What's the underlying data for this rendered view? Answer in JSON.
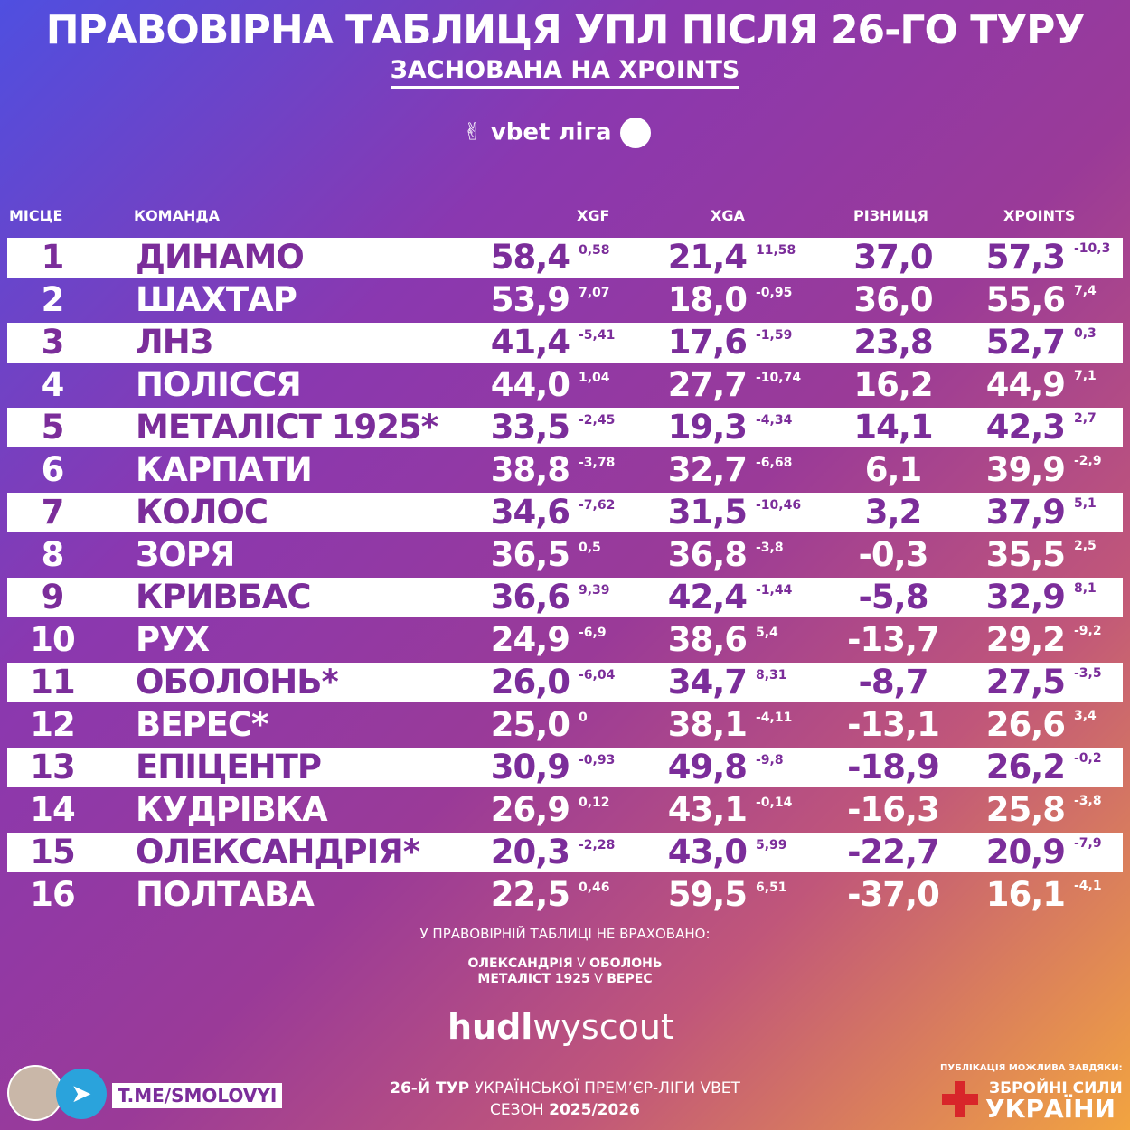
{
  "header": {
    "title": "ПРАВОВІРНА ТАБЛИЦЯ УПЛ ПІСЛЯ 26-ГО ТУРУ",
    "subtitle": "ЗАСНОВАНА НА XPOINTS",
    "logo": "vbet ліга"
  },
  "table": {
    "columns": [
      "МІСЦЕ",
      "КОМАНДА",
      "XGF",
      "XGA",
      "РІЗНИЦЯ",
      "XPOINTS"
    ],
    "rows": [
      [
        "1",
        "ДИНАМО",
        "58,4",
        "0,58",
        "21,4",
        "11,58",
        "37,0",
        "57,3",
        "-10,3"
      ],
      [
        "2",
        "ШАХТАР",
        "53,9",
        "7,07",
        "18,0",
        "-0,95",
        "36,0",
        "55,6",
        "7,4"
      ],
      [
        "3",
        "ЛНЗ",
        "41,4",
        "-5,41",
        "17,6",
        "-1,59",
        "23,8",
        "52,7",
        "0,3"
      ],
      [
        "4",
        "ПОЛІССЯ",
        "44,0",
        "1,04",
        "27,7",
        "-10,74",
        "16,2",
        "44,9",
        "7,1"
      ],
      [
        "5",
        "МЕТАЛІСТ 1925*",
        "33,5",
        "-2,45",
        "19,3",
        "-4,34",
        "14,1",
        "42,3",
        "2,7"
      ],
      [
        "6",
        "КАРПАТИ",
        "38,8",
        "-3,78",
        "32,7",
        "-6,68",
        "6,1",
        "39,9",
        "-2,9"
      ],
      [
        "7",
        "КОЛОС",
        "34,6",
        "-7,62",
        "31,5",
        "-10,46",
        "3,2",
        "37,9",
        "5,1"
      ],
      [
        "8",
        "ЗОРЯ",
        "36,5",
        "0,5",
        "36,8",
        "-3,8",
        "-0,3",
        "35,5",
        "2,5"
      ],
      [
        "9",
        "КРИВБАС",
        "36,6",
        "9,39",
        "42,4",
        "-1,44",
        "-5,8",
        "32,9",
        "8,1"
      ],
      [
        "10",
        "РУХ",
        "24,9",
        "-6,9",
        "38,6",
        "5,4",
        "-13,7",
        "29,2",
        "-9,2"
      ],
      [
        "11",
        "ОБОЛОНЬ*",
        "26,0",
        "-6,04",
        "34,7",
        "8,31",
        "-8,7",
        "27,5",
        "-3,5"
      ],
      [
        "12",
        "ВЕРЕС*",
        "25,0",
        "0",
        "38,1",
        "-4,11",
        "-13,1",
        "26,6",
        "3,4"
      ],
      [
        "13",
        "ЕПІЦЕНТР",
        "30,9",
        "-0,93",
        "49,8",
        "-9,8",
        "-18,9",
        "26,2",
        "-0,2"
      ],
      [
        "14",
        "КУДРІВКА",
        "26,9",
        "0,12",
        "43,1",
        "-0,14",
        "-16,3",
        "25,8",
        "-3,8"
      ],
      [
        "15",
        "ОЛЕКСАНДРІЯ*",
        "20,3",
        "-2,28",
        "43,0",
        "5,99",
        "-22,7",
        "20,9",
        "-7,9"
      ],
      [
        "16",
        "ПОЛТАВА",
        "22,5",
        "0,46",
        "59,5",
        "6,51",
        "-37,0",
        "16,1",
        "-4,1"
      ]
    ]
  },
  "notes": {
    "intro": "У ПРАВОВІРНІЙ ТАБЛИЦІ НЕ ВРАХОВАНО:",
    "matches": [
      [
        "ОЛЕКСАНДРІЯ",
        "V",
        "ОБОЛОНЬ"
      ],
      [
        "МЕТАЛІСТ 1925",
        "V",
        "ВЕРЕС"
      ]
    ]
  },
  "source": {
    "brand": "hudl",
    "product": "wyscout"
  },
  "footer": {
    "channel": "T.ME/SMOLOVYI",
    "round": "26-Й ТУР",
    "league": "УКРАЇНСЬКОЇ ПРЕМ’ЄР-ЛІГИ VBET",
    "season_label": "СЕЗОН",
    "season": "2025/2026",
    "thanks": "ПУБЛІКАЦІЯ МОЖЛИВА ЗАВДЯКИ:",
    "army_1": "ЗБРОЙНІ СИЛИ",
    "army_2": "УКРАЇНИ"
  }
}
